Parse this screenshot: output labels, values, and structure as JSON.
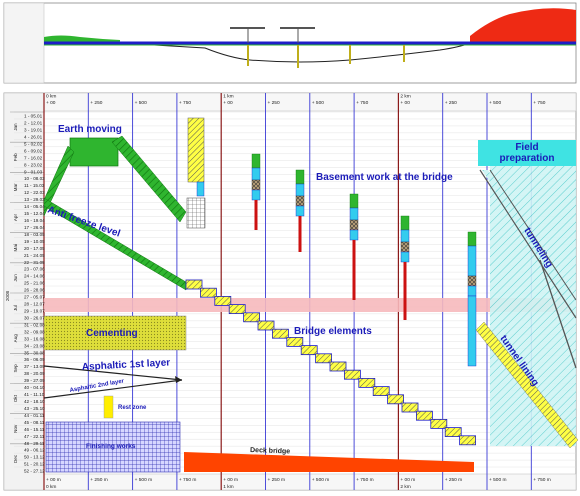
{
  "profile": {
    "panel": "longitudinal terrain profile with bridge"
  },
  "axis": {
    "km_top": [
      "0 km",
      "1 km",
      "2 km"
    ],
    "km_bottom": [
      "0 km",
      "1 km",
      "2 km"
    ],
    "top_ticks": [
      "+ 00",
      "+ 250",
      "+ 500",
      "+ 750",
      "+ 00",
      "+ 250",
      "+ 500",
      "+ 750",
      "+ 00",
      "+ 250",
      "+ 500",
      "+ 750"
    ],
    "bottom_ticks": [
      "+ 00 m",
      "+ 250 m",
      "+ 500 m",
      "+ 750 m",
      "+ 00 m",
      "+ 250 m",
      "+ 500 m",
      "+ 750 m",
      "+ 00 m",
      "+ 250 m",
      "+ 500 m",
      "+ 750 m"
    ],
    "year": "2008",
    "months": [
      "Jan",
      "Feb",
      "Mar",
      "Apr",
      "Mai",
      "Jun",
      "Jul",
      "Aug",
      "Sep",
      "Okt",
      "Nov",
      "Dec"
    ],
    "weeks": [
      "1 - 05.01",
      "2 - 12.01",
      "3 - 19.01",
      "4 - 26.01",
      "5 - 02.02",
      "6 - 09.02",
      "7 - 16.02",
      "8 - 23.02",
      "9 - 01.03",
      "10 - 08.03",
      "11 - 15.03",
      "12 - 22.03",
      "13 - 29.03",
      "14 - 05.04",
      "15 - 12.04",
      "16 - 19.04",
      "17 - 26.04",
      "18 - 03.05",
      "19 - 10.05",
      "20 - 17.05",
      "21 - 24.05",
      "22 - 31.05",
      "23 - 07.06",
      "24 - 14.06",
      "25 - 21.06",
      "26 - 28.06",
      "27 - 05.07",
      "28 - 12.07",
      "29 - 19.07",
      "30 - 26.07",
      "31 - 02.08",
      "32 - 09.08",
      "33 - 16.08",
      "34 - 23.08",
      "35 - 30.08",
      "36 - 06.09",
      "37 - 13.09",
      "38 - 20.09",
      "39 - 27.09",
      "40 - 04.10",
      "41 - 11.10",
      "42 - 18.10",
      "43 - 25.10",
      "44 - 01.11",
      "45 - 08.11",
      "46 - 15.11",
      "47 - 22.11",
      "48 - 29.11",
      "49 - 06.12",
      "50 - 13.12",
      "51 - 20.12",
      "52 - 27.12"
    ]
  },
  "labels": {
    "earth_moving": "Earth moving",
    "anti_freeze": "Anti freeze level",
    "cementing": "Cementing",
    "asphaltic_1": "Asphaltic 1st layer",
    "asphaltic_2": "Asphaltic 2nd layer",
    "rest_zone": "Rest zone",
    "finishing": "Finishing works",
    "basement": "Basement work at the bridge",
    "bridge_elements": "Bridge elements",
    "deck_bridge": "Deck bridge",
    "field_prep": "Field preparation",
    "tunneling": "tunneling",
    "tunnel_lining": "tunnel lining"
  },
  "colors": {
    "earth": "#2fb52f",
    "stage_line": "#1e1ec8",
    "bridge_yellow": "#ffff33",
    "cementing": "#dede3a",
    "field_prep": "#3fe3e3",
    "deck": "#ff4400",
    "terrain_red": "#ee2a14",
    "pier_red": "#cc1111",
    "pier_cyan": "#33ccee",
    "hold_band": "#f6b9bd",
    "finishing_blue": "#2c2cb0"
  }
}
